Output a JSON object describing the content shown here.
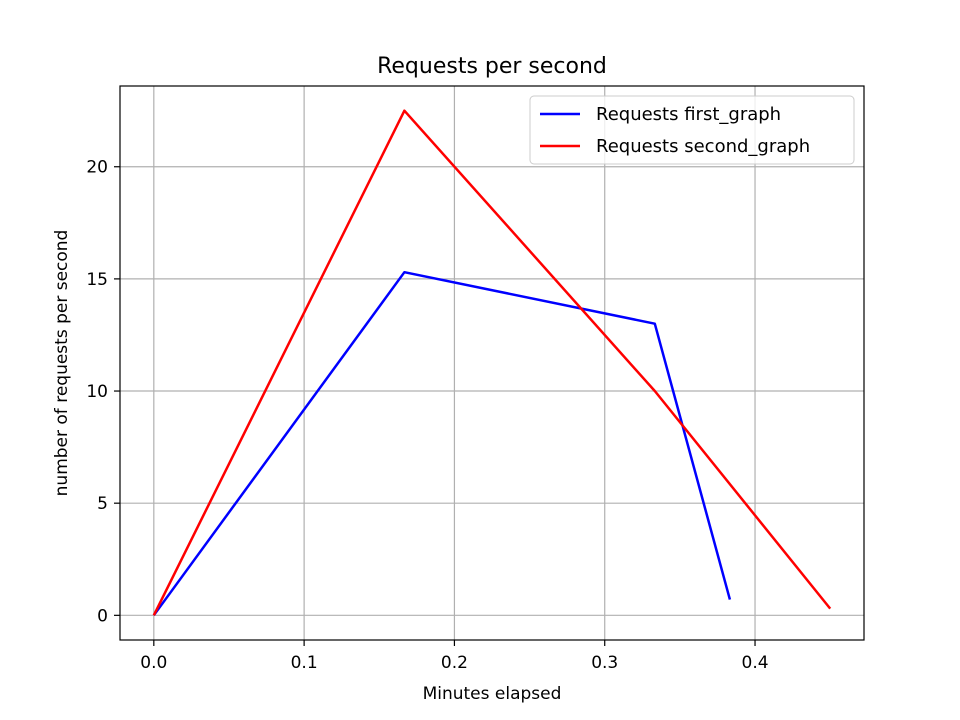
{
  "chart_data": {
    "type": "line",
    "title": "Requests per second",
    "xlabel": "Minutes elapsed",
    "ylabel": "number of requests per second",
    "xlim": [
      -0.0225,
      0.4725
    ],
    "ylim": [
      -1.1,
      23.6
    ],
    "xticks": [
      0.0,
      0.1,
      0.2,
      0.3,
      0.4
    ],
    "xtick_labels": [
      "0.0",
      "0.1",
      "0.2",
      "0.3",
      "0.4"
    ],
    "yticks": [
      0,
      5,
      10,
      15,
      20
    ],
    "ytick_labels": [
      "0",
      "5",
      "10",
      "15",
      "20"
    ],
    "grid": true,
    "legend_position": "top-right",
    "series": [
      {
        "name": "Requests first_graph",
        "color": "#0000ff",
        "x": [
          0.0,
          0.1667,
          0.3333,
          0.3833
        ],
        "y": [
          0.0,
          15.3,
          13.0,
          0.7
        ]
      },
      {
        "name": "Requests second_graph",
        "color": "#ff0000",
        "x": [
          0.0,
          0.1667,
          0.3333,
          0.45
        ],
        "y": [
          0.0,
          22.5,
          10.0,
          0.3
        ]
      }
    ]
  }
}
